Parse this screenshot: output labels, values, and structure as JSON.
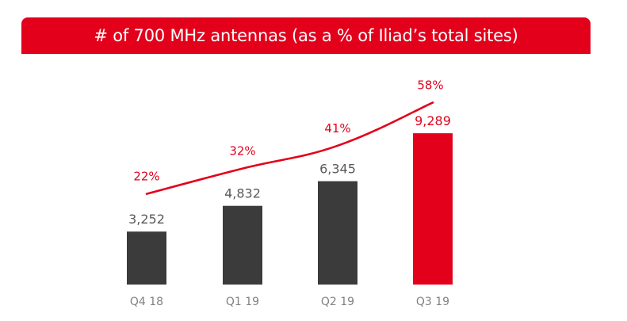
{
  "colors": {
    "accent": "#e3001b",
    "bar_dark": "#3c3b3b",
    "label_gray": "#595959",
    "category_gray": "#808080"
  },
  "chart_data": {
    "type": "bar",
    "title": "# of 700 MHz antennas (as a % of Iliad’s total sites)",
    "categories": [
      "Q4 18",
      "Q1 19",
      "Q2 19",
      "Q3 19"
    ],
    "series": [
      {
        "name": "# of 700 MHz antennas",
        "kind": "bar",
        "values": [
          3252,
          4832,
          6345,
          9289
        ],
        "labels": [
          "3,252",
          "4,832",
          "6,345",
          "9,289"
        ],
        "highlight_index": 3
      },
      {
        "name": "% of Iliad’s total sites",
        "kind": "line",
        "values": [
          22,
          32,
          41,
          58
        ],
        "labels": [
          "22%",
          "32%",
          "41%",
          "58%"
        ]
      }
    ],
    "xlabel": "",
    "ylabel": "",
    "grid": false,
    "legend": "none"
  }
}
